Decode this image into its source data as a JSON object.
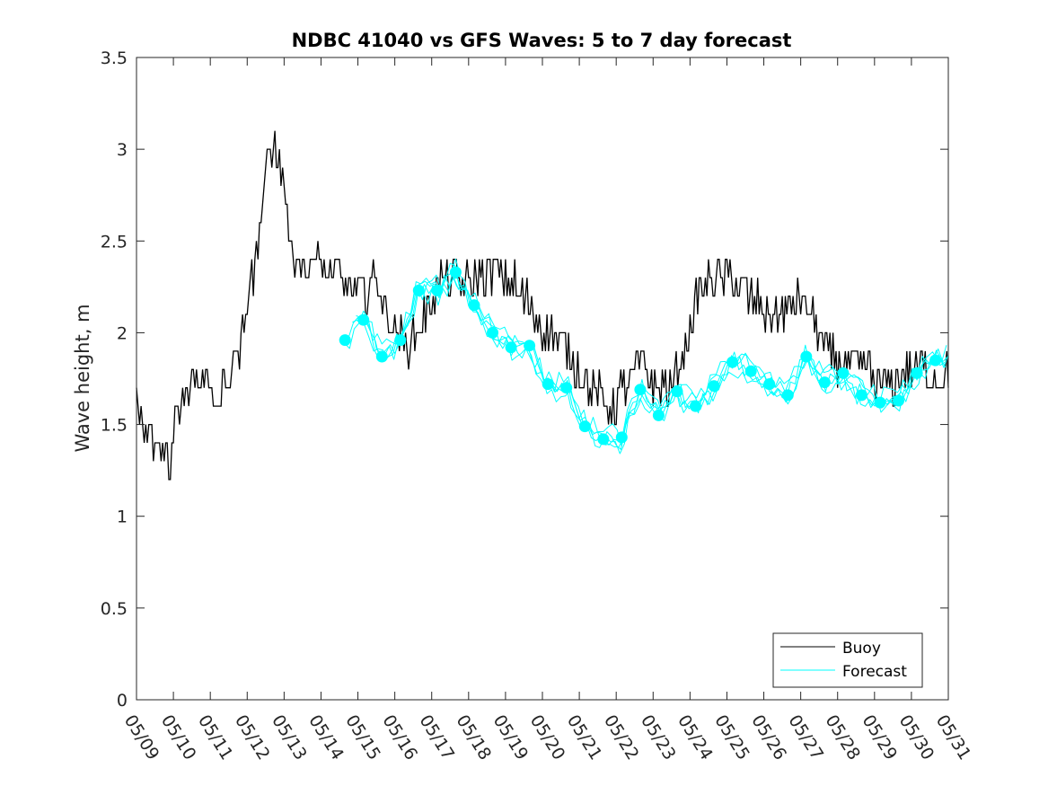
{
  "chart_data": {
    "type": "line",
    "title": "NDBC 41040 vs GFS Waves: 5 to 7 day forecast",
    "xlabel": "",
    "ylabel": "Wave height, m",
    "xlim": [
      0,
      22
    ],
    "ylim": [
      0,
      3.5
    ],
    "x_tick_labels": [
      "05/09",
      "05/10",
      "05/11",
      "05/12",
      "05/13",
      "05/14",
      "05/15",
      "05/16",
      "05/17",
      "05/18",
      "05/19",
      "05/20",
      "05/21",
      "05/22",
      "05/23",
      "05/24",
      "05/25",
      "05/26",
      "05/27",
      "05/28",
      "05/29",
      "05/30",
      "05/31"
    ],
    "y_ticks": [
      0,
      0.5,
      1,
      1.5,
      2,
      2.5,
      3,
      3.5
    ],
    "y_tick_labels": [
      "0",
      "0.5",
      "1",
      "1.5",
      "2",
      "2.5",
      "3",
      "3.5"
    ],
    "grid": false,
    "legend_position": "bottom-right",
    "colors": {
      "buoy": "#000000",
      "forecast": "#00ffff",
      "axis": "#262626"
    },
    "legend": [
      {
        "label": "Buoy",
        "series": "buoy"
      },
      {
        "label": "Forecast",
        "series": "forecast"
      }
    ],
    "buoy": {
      "name": "Buoy",
      "x": [
        0,
        0.25,
        0.5,
        0.75,
        0.9,
        1,
        1.25,
        1.5,
        1.75,
        2,
        2.25,
        2.5,
        2.75,
        3,
        3.1,
        3.25,
        3.5,
        3.75,
        4,
        4.25,
        4.5,
        4.75,
        5,
        5.25,
        5.5,
        5.75,
        6,
        6.25,
        6.5,
        6.75,
        7,
        7.25,
        7.5,
        7.75,
        8,
        8.25,
        8.5,
        8.75,
        9,
        9.25,
        9.5,
        9.75,
        10,
        10.25,
        10.5,
        10.75,
        11,
        11.25,
        11.5,
        11.75,
        12,
        12.25,
        12.5,
        12.75,
        13,
        13.25,
        13.5,
        13.75,
        14,
        14.25,
        14.5,
        14.75,
        15,
        15.25,
        15.5,
        15.75,
        16,
        16.25,
        16.5,
        16.75,
        17,
        17.25,
        17.5,
        17.75,
        18,
        18.25,
        18.5,
        18.75,
        19,
        19.25,
        19.5,
        19.75,
        20,
        20.25,
        20.5,
        20.75,
        21,
        21.25,
        21.5,
        21.75,
        22
      ],
      "y": [
        1.6,
        1.45,
        1.42,
        1.35,
        1.3,
        1.45,
        1.62,
        1.7,
        1.75,
        1.68,
        1.65,
        1.72,
        1.88,
        2.15,
        2.25,
        2.5,
        2.82,
        3.05,
        2.75,
        2.45,
        2.35,
        2.38,
        2.4,
        2.35,
        2.3,
        2.25,
        2.2,
        2.25,
        2.3,
        2.15,
        2.0,
        1.95,
        1.97,
        2.05,
        2.2,
        2.28,
        2.32,
        2.3,
        2.27,
        2.3,
        2.32,
        2.35,
        2.3,
        2.25,
        2.18,
        2.12,
        2.05,
        1.98,
        1.95,
        1.88,
        1.8,
        1.72,
        1.65,
        1.6,
        1.62,
        1.7,
        1.78,
        1.82,
        1.75,
        1.68,
        1.72,
        1.82,
        2.05,
        2.2,
        2.3,
        2.28,
        2.3,
        2.25,
        2.2,
        2.15,
        2.12,
        2.1,
        2.12,
        2.15,
        2.18,
        2.12,
        2.0,
        1.9,
        1.85,
        1.82,
        1.8,
        1.8,
        1.75,
        1.72,
        1.74,
        1.78,
        1.82,
        1.8,
        1.77,
        1.78,
        1.8
      ]
    },
    "forecast": {
      "name": "Forecast",
      "x": [
        5.65,
        6.15,
        6.65,
        7.15,
        7.65,
        8.15,
        8.65,
        9.15,
        9.65,
        10.15,
        10.65,
        11.15,
        11.65,
        12.15,
        12.65,
        13.15,
        13.65,
        14.15,
        14.65,
        15.15,
        15.65,
        16.15,
        16.65,
        17.15,
        17.65,
        18.15,
        18.65,
        19.15,
        19.65,
        20.15,
        20.65,
        21.15,
        21.65
      ],
      "y": [
        1.96,
        2.07,
        1.87,
        1.96,
        2.23,
        2.23,
        2.33,
        2.15,
        2.0,
        1.92,
        1.93,
        1.72,
        1.7,
        1.49,
        1.42,
        1.43,
        1.69,
        1.55,
        1.68,
        1.6,
        1.71,
        1.84,
        1.79,
        1.72,
        1.66,
        1.87,
        1.73,
        1.78,
        1.66,
        1.62,
        1.63,
        1.78,
        1.85
      ]
    }
  }
}
